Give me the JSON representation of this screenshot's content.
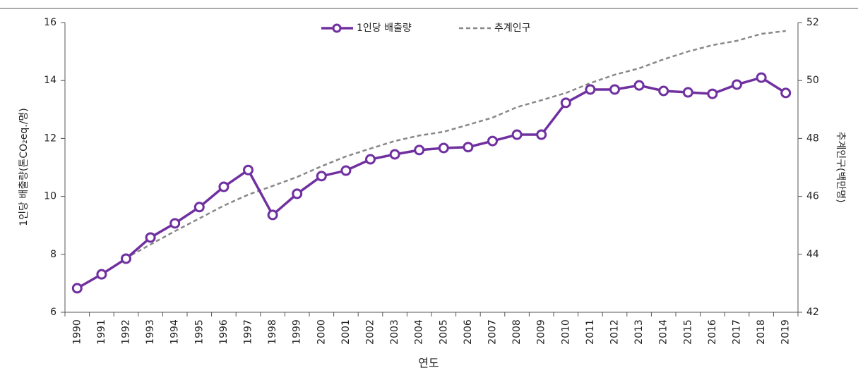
{
  "chart_data": {
    "type": "line",
    "xlabel": "연도",
    "ylabel": "1인당 배출량(톤CO₂eq./명)",
    "y2label": "추계인구(백만명)",
    "categories": [
      "1990",
      "1991",
      "1992",
      "1993",
      "1994",
      "1995",
      "1996",
      "1997",
      "1998",
      "1999",
      "2000",
      "2001",
      "2002",
      "2003",
      "2004",
      "2005",
      "2006",
      "2007",
      "2008",
      "2009",
      "2010",
      "2011",
      "2012",
      "2013",
      "2014",
      "2015",
      "2016",
      "2017",
      "2018",
      "2019"
    ],
    "series": [
      {
        "name": "1인당 배출량",
        "color": "#7030a0",
        "marker": true,
        "values": [
          6.83,
          7.31,
          7.85,
          8.58,
          9.07,
          9.63,
          10.33,
          10.91,
          9.36,
          10.09,
          10.7,
          10.89,
          11.28,
          11.45,
          11.6,
          11.67,
          11.7,
          11.91,
          12.13,
          12.13,
          13.23,
          13.69,
          13.69,
          13.83,
          13.64,
          13.59,
          13.54,
          13.86,
          14.1,
          13.57
        ]
      },
      {
        "name": "추계인구",
        "color": "#888888",
        "dashed": true,
        "axis": "y2",
        "values": [
          42.83,
          43.31,
          43.87,
          44.34,
          44.8,
          45.24,
          45.68,
          46.06,
          46.36,
          46.67,
          47.04,
          47.38,
          47.65,
          47.91,
          48.1,
          48.23,
          48.47,
          48.72,
          49.08,
          49.32,
          49.57,
          49.91,
          50.2,
          50.42,
          50.73,
          51.0,
          51.22,
          51.37,
          51.61,
          51.71
        ]
      }
    ],
    "ylim": [
      6,
      16
    ],
    "yticks": [
      6,
      8,
      10,
      12,
      14,
      16
    ],
    "y2lim": [
      42,
      52
    ],
    "y2ticks": [
      42,
      44,
      46,
      48,
      50,
      52
    ],
    "grid": false,
    "legend": "top"
  }
}
